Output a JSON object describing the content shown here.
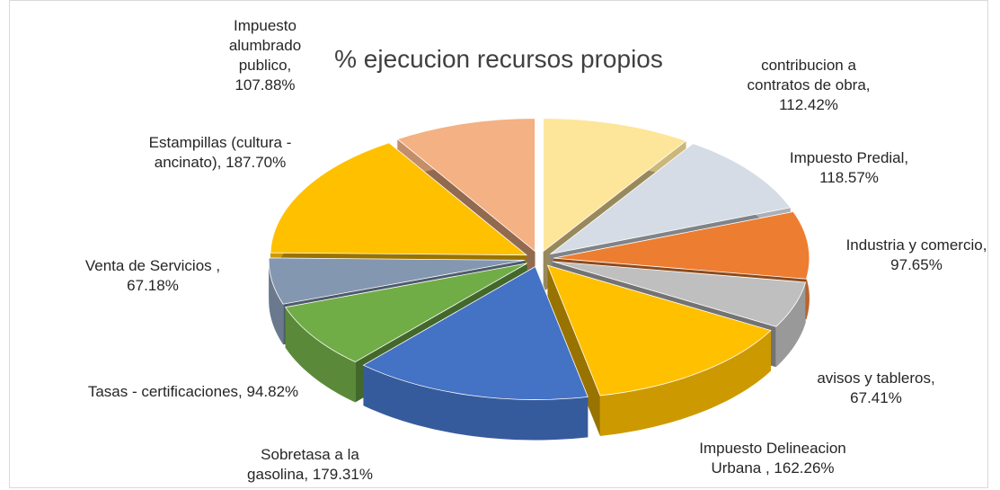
{
  "chart_data": {
    "type": "pie3d",
    "title": "% ejecucion recursos propios",
    "categories": [
      "contribucion a contratos de obra,",
      "Impuesto  Predial,",
      "Industria y comercio,",
      "avisos  y tableros,",
      "Impuesto Delineacion Urbana ,",
      "Sobretasa a la gasolina,",
      "Tasas - certificaciones,",
      "Venta de Servicios ,",
      "Estampillas (cultura - ancinato),",
      "Impuesto alumbrado publico,"
    ],
    "values": [
      112.42,
      118.57,
      97.65,
      67.41,
      162.26,
      179.31,
      94.82,
      67.18,
      187.7,
      107.88
    ],
    "value_labels": [
      "112.42%",
      "118.57%",
      "97.65%",
      "67.41%",
      "162.26%",
      "179.31%",
      "94.82%",
      "67.18%",
      "187.70%",
      "107.88%"
    ],
    "colors": [
      "#fde59a",
      "#d6dce5",
      "#ed7d31",
      "#bfbfbf",
      "#ffc000",
      "#4472c4",
      "#70ad47",
      "#8497b0",
      "#ffc000",
      "#f4b183"
    ]
  }
}
